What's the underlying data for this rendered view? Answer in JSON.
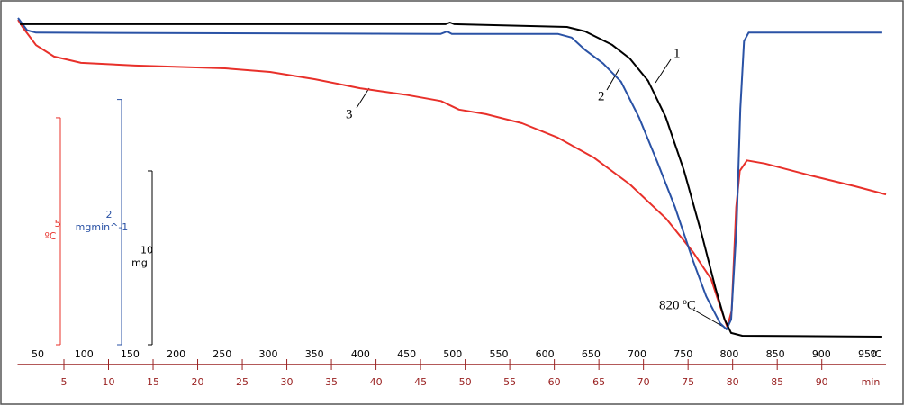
{
  "chart_data": {
    "type": "line",
    "xlim": [
      28,
      970
    ],
    "xticks": [
      50,
      100,
      150,
      200,
      250,
      300,
      350,
      400,
      450,
      500,
      550,
      600,
      650,
      700,
      750,
      800,
      850,
      900,
      950
    ],
    "xlabel": "ºC",
    "x2lim": [
      -0.2,
      97.2
    ],
    "x2ticks": [
      5,
      10,
      15,
      20,
      25,
      30,
      35,
      40,
      45,
      50,
      55,
      60,
      65,
      70,
      75,
      80,
      85,
      90
    ],
    "x2label": "min",
    "x2color": "#9a2222",
    "series": [
      {
        "name": "1",
        "color": "#000000",
        "ylim": [
          -18.55,
          0.36
        ],
        "scale": 10,
        "scale_unit": "mg",
        "x": [
          30.5,
          487,
          492,
          497,
          502,
          624,
          643.5,
          673,
          692,
          712,
          731,
          751,
          770,
          785,
          795,
          802,
          814,
          966
        ],
        "values": [
          0,
          0,
          0,
          0.1,
          0,
          -0.16,
          -0.41,
          -1.19,
          -1.97,
          -3.26,
          -5.34,
          -8.45,
          -12.07,
          -15.18,
          -17.0,
          -17.77,
          -17.93,
          -17.98
        ]
      },
      {
        "name": "2",
        "color": "#2a52a5",
        "ylim": [
          -2.56,
          0.12
        ],
        "scale": 2,
        "scale_unit": "mgmin^-1",
        "x": [
          28.5,
          38.3,
          48,
          487,
          494,
          499,
          614,
          629,
          643.5,
          663,
          682.6,
          702,
          721.6,
          741,
          760.7,
          775,
          790,
          797,
          802,
          808,
          812,
          816,
          821,
          966
        ],
        "values": [
          0.12,
          0.02,
          0,
          -0.01,
          0.01,
          -0.01,
          -0.01,
          -0.04,
          -0.14,
          -0.25,
          -0.4,
          -0.69,
          -1.05,
          -1.42,
          -1.86,
          -2.15,
          -2.37,
          -2.42,
          -2.34,
          -1.57,
          -0.62,
          -0.07,
          0,
          0
        ]
      },
      {
        "name": "3",
        "color": "#e8302a",
        "ylim": [
          -7.2,
          0.04
        ],
        "scale": 5,
        "scale_unit": "ºC",
        "x": [
          28.5,
          33.4,
          48,
          67.6,
          96.9,
          155.4,
          253,
          301.9,
          350.7,
          399.5,
          448.3,
          487.3,
          506.8,
          536.1,
          575.2,
          614.2,
          653.3,
          692.3,
          731.4,
          760.7,
          780.2,
          790,
          797.8,
          802.6,
          807.5,
          811.4,
          819.2,
          838.8,
          887.6,
          936.4,
          970
        ],
        "values": [
          0,
          -0.16,
          -0.56,
          -0.81,
          -0.95,
          -1.01,
          -1.07,
          -1.15,
          -1.31,
          -1.51,
          -1.65,
          -1.79,
          -1.98,
          -2.08,
          -2.28,
          -2.6,
          -3.04,
          -3.63,
          -4.38,
          -5.12,
          -5.71,
          -6.31,
          -6.77,
          -6.41,
          -4.13,
          -3.33,
          -3.1,
          -3.17,
          -3.43,
          -3.67,
          -3.85
        ]
      }
    ],
    "annotation": "820 ºC"
  }
}
